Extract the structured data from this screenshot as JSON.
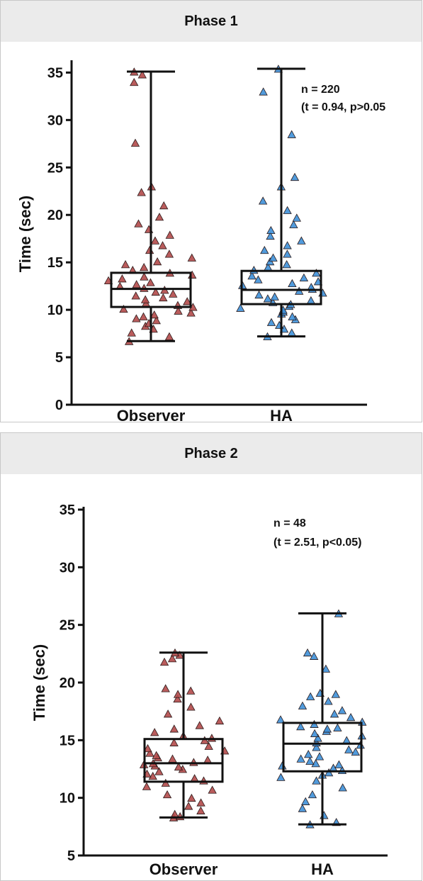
{
  "chart_data": [
    {
      "type": "box",
      "panel_title": "Phase 1",
      "ylabel": "Time (sec)",
      "ylim": [
        0,
        36
      ],
      "yticks": [
        "0",
        "5",
        "10",
        "15",
        "20",
        "25",
        "30",
        "35"
      ],
      "ytick_values": [
        0,
        5,
        10,
        15,
        20,
        25,
        30,
        35
      ],
      "categories": [
        "Observer",
        "HA"
      ],
      "annotations": [
        "n = 220",
        "(t = 0.94, p>0.05"
      ],
      "series": [
        {
          "colour": "#b24a4a",
          "box": {
            "min": 6.7,
            "q1": 10.3,
            "median": 12.2,
            "q3": 13.9,
            "max": 35.1
          },
          "n": 220,
          "points": [
            6.7,
            7.2,
            7.6,
            8.0,
            8.3,
            8.6,
            8.9,
            9.1,
            9.3,
            9.5,
            9.7,
            9.9,
            10.1,
            10.3,
            10.5,
            10.7,
            10.9,
            11.1,
            11.3,
            11.5,
            11.7,
            11.9,
            12.1,
            12.3,
            12.5,
            12.7,
            12.9,
            13.1,
            13.3,
            13.5,
            13.7,
            13.9,
            14.2,
            14.5,
            14.8,
            15.1,
            15.5,
            15.9,
            16.3,
            16.8,
            17.3,
            17.9,
            18.5,
            19.1,
            19.8,
            21.0,
            22.4,
            23.0,
            27.6,
            34.0,
            34.8,
            35.1
          ]
        },
        {
          "colour": "#3e90d8",
          "box": {
            "min": 7.2,
            "q1": 10.6,
            "median": 12.1,
            "q3": 14.1,
            "max": 35.4
          },
          "n": 220,
          "points": [
            7.2,
            7.6,
            8.0,
            8.4,
            8.7,
            9.0,
            9.3,
            9.6,
            9.8,
            10.0,
            10.2,
            10.4,
            10.6,
            10.8,
            11.0,
            11.2,
            11.4,
            11.6,
            11.8,
            12.0,
            12.2,
            12.4,
            12.6,
            12.8,
            13.0,
            13.2,
            13.4,
            13.6,
            13.9,
            14.2,
            14.5,
            14.8,
            15.1,
            15.5,
            15.9,
            16.3,
            16.8,
            17.3,
            17.8,
            18.4,
            19.0,
            19.7,
            20.5,
            21.5,
            23.0,
            24.0,
            28.5,
            33.0,
            35.4
          ]
        }
      ]
    },
    {
      "type": "box",
      "panel_title": "Phase 2",
      "ylabel": "Time (sec)",
      "ylim": [
        5,
        35
      ],
      "yticks": [
        "5",
        "10",
        "15",
        "20",
        "25",
        "30",
        "35"
      ],
      "ytick_values": [
        5,
        10,
        15,
        20,
        25,
        30,
        35
      ],
      "categories": [
        "Observer",
        "HA"
      ],
      "annotations": [
        "n = 48",
        "(t = 2.51, p<0.05)"
      ],
      "series": [
        {
          "colour": "#b24a4a",
          "box": {
            "min": 8.3,
            "q1": 11.4,
            "median": 13.0,
            "q3": 15.1,
            "max": 22.6
          },
          "n": 48,
          "points": [
            8.3,
            8.4,
            8.6,
            8.9,
            9.3,
            9.6,
            10.0,
            10.3,
            10.7,
            11.0,
            11.3,
            11.5,
            11.7,
            11.9,
            12.1,
            12.3,
            12.5,
            12.7,
            12.8,
            12.9,
            13.0,
            13.1,
            13.3,
            13.5,
            13.7,
            13.9,
            14.1,
            14.3,
            14.5,
            14.8,
            15.0,
            15.2,
            15.4,
            15.7,
            16.0,
            16.3,
            16.7,
            17.3,
            17.9,
            18.6,
            19.0,
            19.3,
            19.5,
            21.8,
            22.1,
            22.4,
            22.6,
            13.4
          ]
        },
        {
          "colour": "#3e90d8",
          "box": {
            "min": 7.7,
            "q1": 12.3,
            "median": 14.7,
            "q3": 16.5,
            "max": 26.0
          },
          "n": 48,
          "points": [
            7.7,
            7.9,
            8.5,
            9.1,
            9.7,
            10.3,
            10.9,
            11.5,
            11.8,
            12.0,
            12.2,
            12.4,
            12.6,
            12.8,
            13.0,
            13.2,
            13.4,
            13.6,
            13.8,
            14.0,
            14.2,
            14.4,
            14.6,
            14.8,
            15.0,
            15.2,
            15.4,
            15.6,
            15.8,
            16.0,
            16.2,
            16.4,
            16.6,
            16.8,
            17.0,
            17.3,
            17.6,
            18.0,
            18.4,
            18.8,
            19.0,
            19.1,
            21.2,
            22.3,
            22.6,
            26.0,
            16.1,
            12.9
          ]
        }
      ]
    }
  ]
}
